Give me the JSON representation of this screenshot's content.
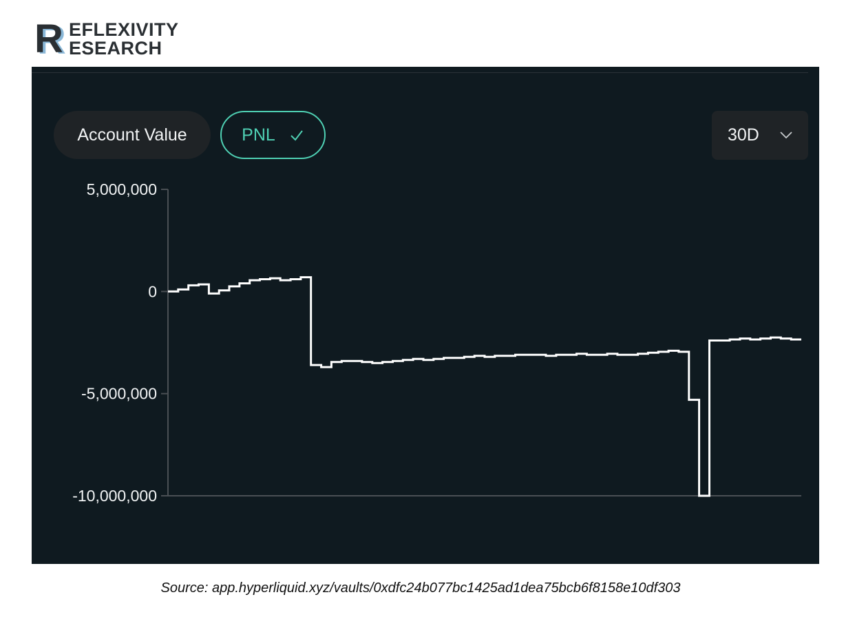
{
  "brand": {
    "line1": "EFLEXIVITY",
    "line2": "ESEARCH",
    "logo_mark_letter": "R",
    "logo_icon": "reflexivity-logo-icon",
    "colors": {
      "text": "#2a2f33",
      "accent": "#8ab8d8"
    }
  },
  "toolbar": {
    "account_value_label": "Account Value",
    "pnl_label": "PNL",
    "pnl_icon": "check-icon",
    "range_label": "30D",
    "range_icon": "chevron-down-icon"
  },
  "colors": {
    "panel_bg": "#0f1a20",
    "accent": "#4fd1b4",
    "series": "#ffffff",
    "axis": "#4a4f54",
    "pill_bg": "#1f2326"
  },
  "chart_data": {
    "type": "line",
    "step": true,
    "ylim": [
      -10000000,
      5000000
    ],
    "yticks": [
      5000000,
      0,
      -5000000,
      -10000000
    ],
    "ytick_labels": [
      "5,000,000",
      "0",
      "-5,000,000",
      "-10,000,000"
    ],
    "grid": false,
    "legend": "none",
    "series": [
      {
        "values": [
          0,
          100000,
          300000,
          350000,
          -100000,
          50000,
          250000,
          400000,
          550000,
          600000,
          650000,
          550000,
          600000,
          700000,
          -3600000,
          -3700000,
          -3450000,
          -3400000,
          -3400000,
          -3450000,
          -3500000,
          -3450000,
          -3400000,
          -3350000,
          -3300000,
          -3350000,
          -3300000,
          -3250000,
          -3250000,
          -3200000,
          -3150000,
          -3200000,
          -3150000,
          -3150000,
          -3100000,
          -3100000,
          -3100000,
          -3150000,
          -3100000,
          -3100000,
          -3050000,
          -3100000,
          -3100000,
          -3050000,
          -3100000,
          -3100000,
          -3050000,
          -3000000,
          -2950000,
          -2900000,
          -2950000,
          -5300000,
          -10000000,
          -2400000,
          -2400000,
          -2350000,
          -2300000,
          -2350000,
          -2300000,
          -2250000,
          -2300000,
          -2350000
        ]
      }
    ]
  },
  "caption": {
    "source": "Source: app.hyperliquid.xyz/vaults/0xdfc24b077bc1425ad1dea75bcb6f8158e10df303"
  }
}
